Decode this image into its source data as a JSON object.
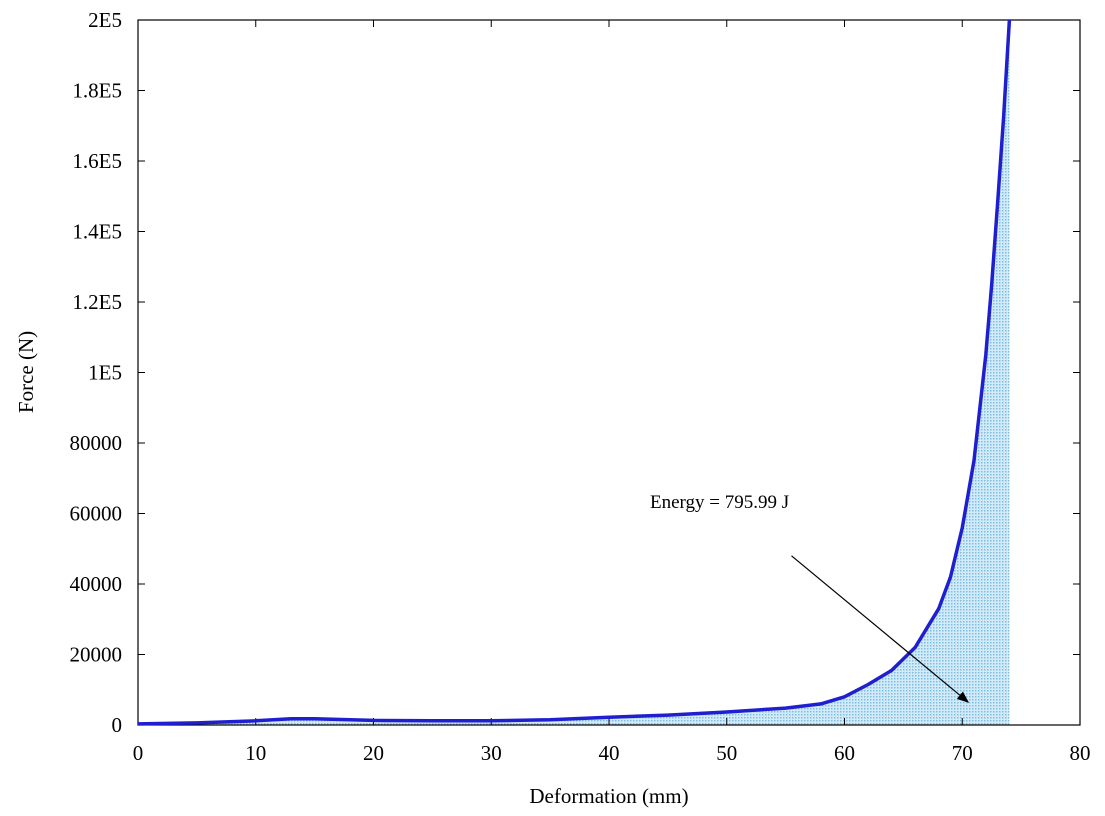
{
  "chart_data": {
    "type": "area",
    "title": "",
    "xlabel": "Deformation (mm)",
    "ylabel": "Force (N)",
    "xlim": [
      0,
      80
    ],
    "ylim": [
      0,
      200000
    ],
    "x_ticks": [
      0,
      10,
      20,
      30,
      40,
      50,
      60,
      70,
      80
    ],
    "x_tick_labels": [
      "0",
      "10",
      "20",
      "30",
      "40",
      "50",
      "60",
      "70",
      "80"
    ],
    "y_ticks": [
      0,
      20000,
      40000,
      60000,
      80000,
      100000,
      120000,
      140000,
      160000,
      180000,
      200000
    ],
    "y_tick_labels": [
      "0",
      "20000",
      "40000",
      "60000",
      "80000",
      "1E5",
      "1.2E5",
      "1.4E5",
      "1.6E5",
      "1.8E5",
      "2E5"
    ],
    "grid": false,
    "series": [
      {
        "x": [
          0,
          5,
          10,
          13,
          15,
          18,
          20,
          25,
          30,
          35,
          40,
          45,
          50,
          55,
          58,
          60,
          62,
          64,
          66,
          68,
          69,
          70,
          71,
          72,
          72.5,
          73,
          73.5,
          74
        ],
        "y": [
          300,
          600,
          1200,
          1800,
          1800,
          1500,
          1300,
          1200,
          1200,
          1500,
          2200,
          2800,
          3700,
          4800,
          6000,
          8000,
          11500,
          15500,
          22000,
          33000,
          42000,
          56000,
          75000,
          105000,
          125000,
          148000,
          172000,
          200000
        ],
        "color": "#1f1fd0"
      }
    ],
    "shaded_region": {
      "x_from": 0,
      "x_to": 74,
      "color": "#a9d4ec"
    },
    "annotation": {
      "text": "Energy = 795.99 J",
      "arrow_from": [
        55.5,
        48000
      ],
      "arrow_to": [
        70.5,
        6500
      ]
    }
  }
}
